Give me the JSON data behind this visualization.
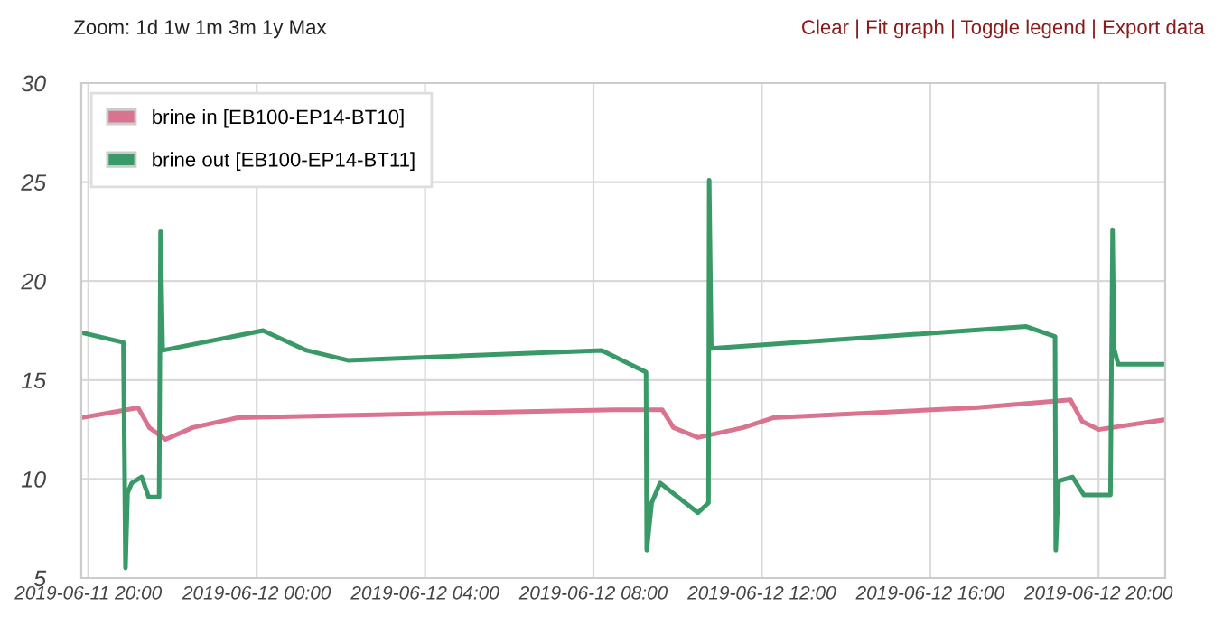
{
  "chart_data": {
    "type": "line",
    "annotations": [
      "Zoom: 1d 1w 1m 3m 1y Max",
      "Clear | Fit graph | Toggle legend | Export data"
    ],
    "xlim": [
      "2019-06-11T19:50",
      "2019-06-12T21:35"
    ],
    "xticks": [
      {
        "value": "2019-06-11T20:00",
        "label": "2019-06-11 20:00"
      },
      {
        "value": "2019-06-12T00:00",
        "label": "2019-06-12 00:00"
      },
      {
        "value": "2019-06-12T04:00",
        "label": "2019-06-12 04:00"
      },
      {
        "value": "2019-06-12T08:00",
        "label": "2019-06-12 08:00"
      },
      {
        "value": "2019-06-12T12:00",
        "label": "2019-06-12 12:00"
      },
      {
        "value": "2019-06-12T16:00",
        "label": "2019-06-12 16:00"
      },
      {
        "value": "2019-06-12T20:00",
        "label": "2019-06-12 20:00"
      }
    ],
    "ylim": [
      5,
      30
    ],
    "yticks": [
      5,
      10,
      15,
      20,
      25,
      30
    ],
    "grid": true,
    "legend": "top left",
    "marker": "none",
    "line_style": "solid",
    "series": [
      {
        "name": "brine in [EB100-EP14-BT10]",
        "color": "#d9738f",
        "x": [
          "2019-06-11T19:50",
          "2019-06-11T21:11",
          "2019-06-11T21:27",
          "2019-06-11T21:50",
          "2019-06-11T22:29",
          "2019-06-11T23:33",
          "2019-06-12T08:30",
          "2019-06-12T09:38",
          "2019-06-12T09:54",
          "2019-06-12T10:29",
          "2019-06-12T11:34",
          "2019-06-12T12:17",
          "2019-06-12T17:04",
          "2019-06-12T19:20",
          "2019-06-12T19:37",
          "2019-06-12T20:00",
          "2019-06-12T21:35"
        ],
        "values": [
          13.1,
          13.6,
          12.6,
          12.0,
          12.6,
          13.1,
          13.5,
          13.5,
          12.6,
          12.1,
          12.6,
          13.1,
          13.6,
          14.0,
          12.9,
          12.5,
          13.0
        ]
      },
      {
        "name": "brine out [EB100-EP14-BT11]",
        "color": "#3a9a67",
        "x": [
          "2019-06-11T19:50",
          "2019-06-11T20:50",
          "2019-06-11T20:53",
          "2019-06-11T20:56",
          "2019-06-11T21:02",
          "2019-06-11T21:16",
          "2019-06-11T21:26",
          "2019-06-11T21:41",
          "2019-06-11T21:43",
          "2019-06-11T21:46",
          "2019-06-12T00:09",
          "2019-06-12T01:11",
          "2019-06-12T02:10",
          "2019-06-12T08:12",
          "2019-06-12T09:15",
          "2019-06-12T09:16",
          "2019-06-12T09:23",
          "2019-06-12T09:35",
          "2019-06-12T10:29",
          "2019-06-12T10:44",
          "2019-06-12T10:45",
          "2019-06-12T10:48",
          "2019-06-12T18:17",
          "2019-06-12T18:58",
          "2019-06-12T18:59",
          "2019-06-12T19:03",
          "2019-06-12T19:23",
          "2019-06-12T19:39",
          "2019-06-12T20:17",
          "2019-06-12T20:20",
          "2019-06-12T20:22",
          "2019-06-12T20:28",
          "2019-06-12T21:35"
        ],
        "values": [
          17.4,
          16.9,
          5.5,
          9.3,
          9.8,
          10.1,
          9.1,
          9.1,
          22.5,
          16.5,
          17.5,
          16.5,
          16.0,
          16.5,
          15.4,
          6.4,
          8.8,
          9.8,
          8.3,
          8.8,
          25.1,
          16.6,
          17.7,
          17.2,
          6.4,
          9.9,
          10.1,
          9.2,
          9.2,
          22.6,
          16.6,
          15.8,
          15.8
        ]
      }
    ]
  }
}
